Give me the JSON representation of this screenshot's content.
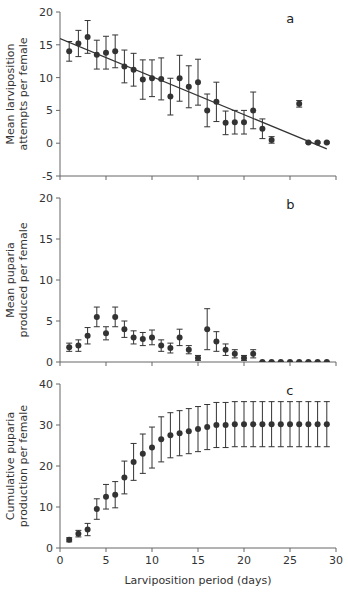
{
  "chart_data": [
    {
      "type": "scatter",
      "title": "a",
      "y_label": "Mean larviposition\nattempts per female",
      "x": [
        1,
        2,
        3,
        4,
        5,
        6,
        7,
        8,
        9,
        10,
        11,
        12,
        13,
        14,
        15,
        16,
        17,
        18,
        19,
        20,
        21,
        22,
        23,
        26,
        27,
        28,
        29
      ],
      "series": [
        {
          "values": [
            14.0,
            15.2,
            16.2,
            13.5,
            13.8,
            14.0,
            11.7,
            11.2,
            9.7,
            9.9,
            9.8,
            7.1,
            9.9,
            8.6,
            9.3,
            5.0,
            6.3,
            3.1,
            3.2,
            3.2,
            5.0,
            2.2,
            0.5,
            6.0,
            0.1,
            0.1,
            0.1
          ],
          "errors": [
            1.5,
            2.0,
            2.5,
            2.2,
            2.5,
            2.5,
            2.5,
            2.5,
            3.0,
            2.8,
            3.2,
            2.8,
            3.5,
            3.2,
            3.5,
            2.5,
            3.0,
            1.8,
            1.8,
            1.8,
            2.8,
            1.5,
            0.5,
            0.5,
            0.1,
            0.1,
            0.1
          ],
          "color": "#333333",
          "marker": "circle"
        },
        {
          "type": "line",
          "x": [
            0,
            29
          ],
          "values": [
            15.96,
            -0.86
          ],
          "color": "#333333",
          "line_style": "solid"
        }
      ],
      "xlim": [
        0,
        30
      ],
      "xticks": [
        0,
        5,
        10,
        15,
        20,
        25,
        30
      ],
      "ylim": [
        -5,
        20
      ],
      "yticks": [
        -5,
        0,
        5,
        10,
        15,
        20
      ],
      "tick_labels": "y"
    },
    {
      "type": "scatter",
      "title": "b",
      "y_label": "Mean puparia\nproduced per female",
      "x": [
        1,
        2,
        3,
        4,
        5,
        6,
        7,
        8,
        9,
        10,
        11,
        12,
        13,
        14,
        15,
        16,
        17,
        18,
        19,
        20,
        21,
        22,
        23,
        24,
        25,
        26,
        27,
        28,
        29
      ],
      "series": [
        {
          "values": [
            1.8,
            2.0,
            3.2,
            5.5,
            3.5,
            5.5,
            4.0,
            3.0,
            2.8,
            3.0,
            2.0,
            1.7,
            3.0,
            1.5,
            0.5,
            4.0,
            2.5,
            1.5,
            1.0,
            0.5,
            1.0,
            0.0,
            0.0,
            0.0,
            0.0,
            0.0,
            0.0,
            0.0,
            0.0
          ],
          "errors": [
            0.5,
            0.7,
            1.0,
            1.2,
            0.8,
            1.2,
            1.0,
            0.8,
            0.8,
            0.9,
            0.7,
            0.6,
            1.0,
            0.5,
            0.3,
            2.5,
            1.2,
            0.7,
            0.5,
            0.3,
            0.5,
            0.0,
            0.0,
            0.0,
            0.0,
            0.0,
            0.0,
            0.0,
            0.0
          ],
          "color": "#333333",
          "marker": "circle"
        }
      ],
      "xlim": [
        0,
        30
      ],
      "xticks": [
        0,
        5,
        10,
        15,
        20,
        25,
        30
      ],
      "ylim": [
        0,
        20
      ],
      "yticks": [
        0,
        5,
        10,
        15,
        20
      ],
      "tick_labels": "y"
    },
    {
      "type": "scatter",
      "title": "c",
      "y_label": "Cumulative puparia\nproduction per female",
      "x_label": "Larviposition period (days)",
      "x": [
        1,
        2,
        3,
        4,
        5,
        6,
        7,
        8,
        9,
        10,
        11,
        12,
        13,
        14,
        15,
        16,
        17,
        18,
        19,
        20,
        21,
        22,
        23,
        24,
        25,
        26,
        27,
        28,
        29
      ],
      "series": [
        {
          "values": [
            2.0,
            3.5,
            4.5,
            9.5,
            12.5,
            13.0,
            17.2,
            21.0,
            23.0,
            24.5,
            26.5,
            27.5,
            28.0,
            28.5,
            29.0,
            29.5,
            30.0,
            30.0,
            30.2,
            30.2,
            30.2,
            30.2,
            30.2,
            30.2,
            30.2,
            30.2,
            30.2,
            30.2,
            30.2
          ],
          "errors": [
            0.5,
            0.8,
            1.5,
            2.5,
            3.0,
            3.2,
            4.0,
            4.5,
            4.8,
            5.0,
            5.5,
            5.5,
            5.5,
            5.5,
            5.5,
            5.5,
            5.5,
            5.5,
            5.5,
            5.5,
            5.5,
            5.5,
            5.5,
            5.5,
            5.5,
            5.5,
            5.5,
            5.5,
            5.5
          ],
          "color": "#333333",
          "marker": "circle"
        }
      ],
      "xlim": [
        0,
        30
      ],
      "xticks": [
        0,
        5,
        10,
        15,
        20,
        25,
        30
      ],
      "ylim": [
        0,
        40
      ],
      "yticks": [
        0,
        10,
        20,
        30,
        40
      ]
    }
  ]
}
